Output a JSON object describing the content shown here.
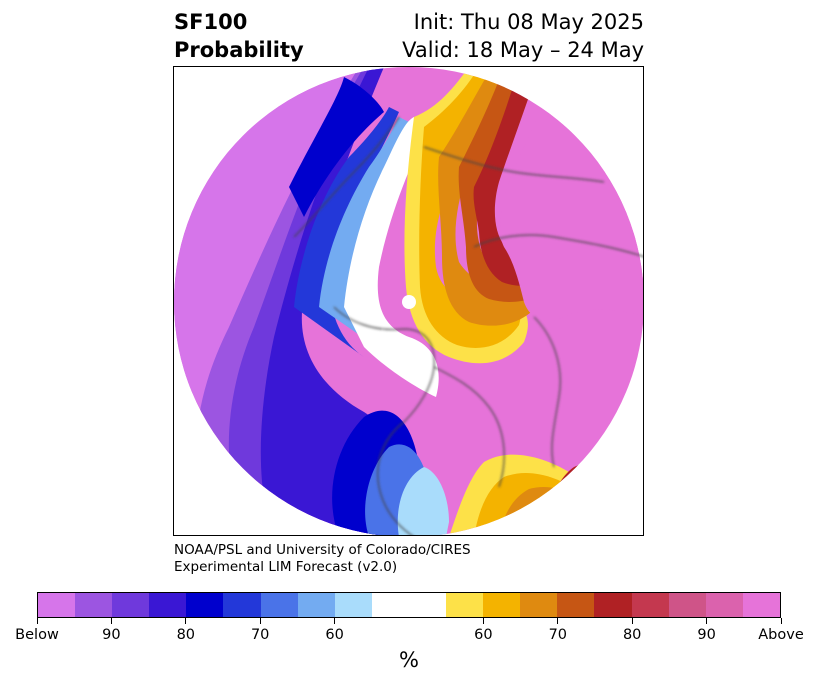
{
  "title": {
    "left_line1": "SF100",
    "left_line2": "Probability",
    "right_line1": "Init: Thu 08 May 2025",
    "right_line2": "Valid: 18 May – 24 May"
  },
  "credit": {
    "line1": "NOAA/PSL and University of Colorado/CIRES",
    "line2": "Experimental LIM Forecast (v2.0)"
  },
  "colorbar": {
    "colors": [
      "#d675ea",
      "#9c55e1",
      "#6f39dc",
      "#3a17d4",
      "#0000cd",
      "#2338d9",
      "#4a73e8",
      "#73abf1",
      "#a9dcfb",
      "#ffffff",
      "#ffffff",
      "#fde148",
      "#f4b300",
      "#df8a10",
      "#c65614",
      "#b02124",
      "#c4384f",
      "#cf5488",
      "#db62ad",
      "#e673d9"
    ],
    "tick_labels": [
      "Below",
      "90",
      "80",
      "70",
      "60",
      "60",
      "70",
      "80",
      "90",
      "Above"
    ],
    "unit": "%"
  },
  "map": {
    "colors": {
      "below": "#d675ea",
      "b90": "#9c55e1",
      "b85": "#6f39dc",
      "b80": "#3a17d4",
      "b75": "#0000cd",
      "b70": "#2338d9",
      "b65": "#4a73e8",
      "b60": "#73abf1",
      "b55": "#a9dcfb",
      "neutral": "#ffffff",
      "a55": "#fde148",
      "a60": "#f4b300",
      "a65": "#df8a10",
      "a70": "#c65614",
      "a75": "#b02124",
      "a80": "#c4384f",
      "a85": "#cf5488",
      "a90": "#db62ad",
      "above": "#e673d9",
      "coast": "#444444",
      "pole_marker": "#ffffff"
    }
  }
}
